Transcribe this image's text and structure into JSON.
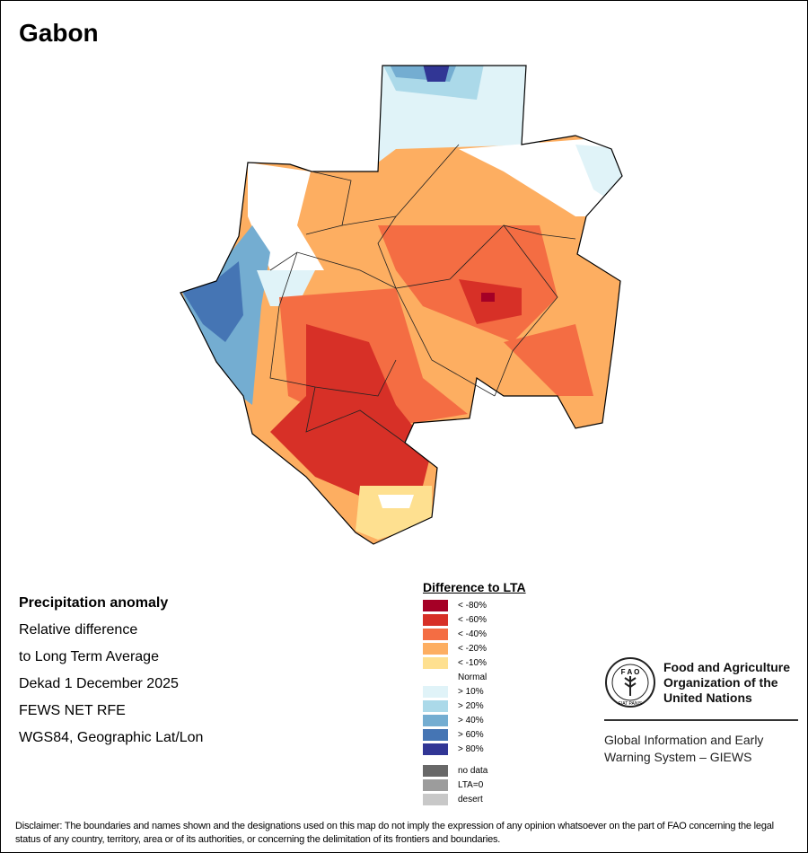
{
  "title": "Gabon",
  "info": [
    "Precipitation anomaly",
    "Relative difference",
    "to Long Term Average",
    "Dekad 1 December 2025",
    "FEWS NET RFE",
    "WGS84, Geographic Lat/Lon"
  ],
  "legend": {
    "title": "Difference to LTA",
    "items": [
      {
        "label": "< -80%",
        "color": "#a50026"
      },
      {
        "label": "< -60%",
        "color": "#d73027"
      },
      {
        "label": "< -40%",
        "color": "#f46d43"
      },
      {
        "label": "< -20%",
        "color": "#fdae61"
      },
      {
        "label": "< -10%",
        "color": "#fee090"
      },
      {
        "label": "Normal",
        "color": "#ffffff"
      },
      {
        "label": "> 10%",
        "color": "#e0f3f8"
      },
      {
        "label": "> 20%",
        "color": "#abd9e9"
      },
      {
        "label": "> 40%",
        "color": "#74add1"
      },
      {
        "label": "> 60%",
        "color": "#4575b4"
      },
      {
        "label": "> 80%",
        "color": "#313695"
      }
    ],
    "other": [
      {
        "label": "no data",
        "color": "#686868"
      },
      {
        "label": "LTA=0",
        "color": "#9c9c9c"
      },
      {
        "label": "desert",
        "color": "#c8c8c8"
      }
    ]
  },
  "fao": {
    "name": "Food and Agriculture Organization of the United Nations",
    "logo_text": "FAO FIAT PANIS",
    "giews": "Global Information and Early Warning System – GIEWS"
  },
  "disclaimer": "Disclaimer: The boundaries and names shown and the designations used on this map do not imply the expression of any opinion whatsoever on the part of FAO concerning the legal status of any country, territory, area or of its authorities, or concerning the delimitation of its frontiers and boundaries."
}
